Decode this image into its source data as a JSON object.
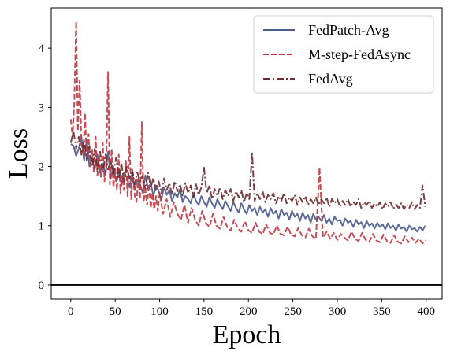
{
  "chart_data": {
    "type": "line",
    "title": "",
    "xlabel": "Epoch",
    "ylabel": "Loss",
    "xlim": [
      -22,
      418
    ],
    "ylim": [
      -0.24,
      4.68
    ],
    "xticks": [
      0,
      50,
      100,
      150,
      200,
      250,
      300,
      350,
      400
    ],
    "yticks": [
      0,
      1,
      2,
      3,
      4
    ],
    "grid": false,
    "legend_position": "top-right",
    "hline": 0,
    "series": [
      {
        "name": "FedPatch-Avg",
        "color": "#4a5a8a",
        "dash": "solid",
        "x": [
          0,
          3,
          6,
          9,
          12,
          15,
          18,
          21,
          24,
          27,
          30,
          33,
          36,
          39,
          42,
          45,
          48,
          51,
          54,
          57,
          60,
          63,
          66,
          69,
          72,
          75,
          78,
          81,
          84,
          87,
          90,
          93,
          96,
          99,
          102,
          105,
          108,
          111,
          114,
          117,
          120,
          123,
          126,
          129,
          132,
          135,
          138,
          141,
          144,
          147,
          150,
          153,
          156,
          159,
          162,
          165,
          168,
          171,
          174,
          177,
          180,
          183,
          186,
          189,
          192,
          195,
          198,
          201,
          204,
          207,
          210,
          213,
          216,
          219,
          222,
          225,
          228,
          231,
          234,
          237,
          240,
          243,
          246,
          249,
          252,
          255,
          258,
          261,
          264,
          267,
          270,
          273,
          276,
          279,
          282,
          285,
          288,
          291,
          294,
          297,
          300,
          303,
          306,
          309,
          312,
          315,
          318,
          321,
          324,
          327,
          330,
          333,
          336,
          339,
          342,
          345,
          348,
          351,
          354,
          357,
          360,
          363,
          366,
          369,
          372,
          375,
          378,
          381,
          384,
          387,
          390,
          393,
          396,
          399
        ],
        "values": [
          2.38,
          2.35,
          2.18,
          2.3,
          2.5,
          2.1,
          2.45,
          2.0,
          2.15,
          1.95,
          2.2,
          1.9,
          2.05,
          1.85,
          2.25,
          1.8,
          2.0,
          1.75,
          1.95,
          1.7,
          1.9,
          1.82,
          1.65,
          1.88,
          1.6,
          1.78,
          1.7,
          1.55,
          1.85,
          1.62,
          1.72,
          1.5,
          1.68,
          1.58,
          1.45,
          1.65,
          1.52,
          1.6,
          1.42,
          1.55,
          1.48,
          1.62,
          1.4,
          1.5,
          1.45,
          1.38,
          1.55,
          1.42,
          1.35,
          1.5,
          1.4,
          1.32,
          1.48,
          1.38,
          1.3,
          1.45,
          1.35,
          1.28,
          1.42,
          1.33,
          1.25,
          1.4,
          1.3,
          1.22,
          1.38,
          1.28,
          1.2,
          1.35,
          1.25,
          1.3,
          1.18,
          1.32,
          1.22,
          1.28,
          1.15,
          1.3,
          1.2,
          1.25,
          1.12,
          1.28,
          1.18,
          1.22,
          1.1,
          1.25,
          1.15,
          1.2,
          1.08,
          1.22,
          1.12,
          1.18,
          1.05,
          1.2,
          1.1,
          1.15,
          1.08,
          1.18,
          1.05,
          1.12,
          1.02,
          1.15,
          1.08,
          1.1,
          1.0,
          1.12,
          1.05,
          1.08,
          0.98,
          1.1,
          1.02,
          1.06,
          0.96,
          1.08,
          1.0,
          1.04,
          0.95,
          1.05,
          0.98,
          1.02,
          0.94,
          1.04,
          0.96,
          1.0,
          0.92,
          1.02,
          0.95,
          0.98,
          0.9,
          1.0,
          0.94,
          0.96,
          0.9,
          0.98,
          0.92,
          1.0
        ]
      },
      {
        "name": "M-step-FedAsync",
        "color": "#c0393f",
        "dash": "dashed",
        "x": [
          0,
          2,
          4,
          6,
          8,
          10,
          12,
          14,
          16,
          18,
          20,
          22,
          24,
          26,
          28,
          30,
          32,
          34,
          36,
          38,
          40,
          42,
          44,
          46,
          48,
          50,
          52,
          54,
          56,
          58,
          60,
          62,
          64,
          66,
          68,
          70,
          72,
          74,
          76,
          78,
          80,
          82,
          84,
          86,
          88,
          90,
          92,
          94,
          96,
          98,
          100,
          104,
          108,
          112,
          116,
          120,
          124,
          128,
          132,
          136,
          140,
          144,
          148,
          152,
          156,
          160,
          164,
          168,
          172,
          176,
          180,
          184,
          188,
          192,
          196,
          200,
          204,
          208,
          212,
          216,
          220,
          224,
          228,
          232,
          236,
          240,
          244,
          248,
          252,
          256,
          260,
          264,
          268,
          272,
          276,
          280,
          284,
          288,
          292,
          296,
          300,
          304,
          308,
          312,
          316,
          320,
          324,
          328,
          332,
          336,
          340,
          344,
          348,
          352,
          356,
          360,
          364,
          368,
          372,
          376,
          380,
          384,
          388,
          392,
          396,
          399
        ],
        "values": [
          2.8,
          2.5,
          3.1,
          4.45,
          2.6,
          3.45,
          2.4,
          2.2,
          2.9,
          2.1,
          2.55,
          2.0,
          2.3,
          1.9,
          2.5,
          1.85,
          2.2,
          1.8,
          2.4,
          1.75,
          2.1,
          3.6,
          1.7,
          2.3,
          1.65,
          1.95,
          1.6,
          2.2,
          1.55,
          1.85,
          1.6,
          2.1,
          1.5,
          2.5,
          1.45,
          1.9,
          1.5,
          1.4,
          1.8,
          1.45,
          2.75,
          1.4,
          1.6,
          1.35,
          1.7,
          1.3,
          1.55,
          1.28,
          1.5,
          1.25,
          1.55,
          1.2,
          1.45,
          1.15,
          1.4,
          1.2,
          1.1,
          1.35,
          1.05,
          1.3,
          1.1,
          1.0,
          1.25,
          1.05,
          0.98,
          1.2,
          1.0,
          0.95,
          1.15,
          0.98,
          0.92,
          1.1,
          0.95,
          0.9,
          1.08,
          0.92,
          0.88,
          1.05,
          0.9,
          0.86,
          1.02,
          0.88,
          0.85,
          1.0,
          0.86,
          0.84,
          0.98,
          0.85,
          0.82,
          0.96,
          0.84,
          0.8,
          0.95,
          0.82,
          0.78,
          1.98,
          0.8,
          0.9,
          0.78,
          0.88,
          0.76,
          0.86,
          0.8,
          0.75,
          0.9,
          0.78,
          0.74,
          0.88,
          0.76,
          0.73,
          0.86,
          0.75,
          0.72,
          0.85,
          0.74,
          0.71,
          0.84,
          0.73,
          0.7,
          0.82,
          0.72,
          0.8,
          0.71,
          0.78,
          0.7,
          0.75
        ]
      },
      {
        "name": "FedAvg",
        "color": "#6b2b30",
        "dash": "dashdot",
        "x": [
          0,
          3,
          6,
          9,
          12,
          15,
          18,
          21,
          24,
          27,
          30,
          33,
          36,
          39,
          42,
          45,
          48,
          51,
          54,
          57,
          60,
          63,
          66,
          69,
          72,
          75,
          78,
          81,
          84,
          87,
          90,
          93,
          96,
          99,
          102,
          105,
          108,
          111,
          114,
          117,
          120,
          123,
          126,
          129,
          132,
          135,
          138,
          141,
          144,
          147,
          150,
          153,
          156,
          159,
          162,
          165,
          168,
          171,
          174,
          177,
          180,
          183,
          186,
          189,
          192,
          195,
          198,
          201,
          204,
          207,
          210,
          213,
          216,
          219,
          222,
          225,
          228,
          231,
          234,
          237,
          240,
          243,
          246,
          249,
          252,
          255,
          258,
          261,
          264,
          267,
          270,
          273,
          276,
          279,
          282,
          285,
          288,
          291,
          294,
          297,
          300,
          303,
          306,
          309,
          312,
          315,
          318,
          321,
          324,
          327,
          330,
          333,
          336,
          339,
          342,
          345,
          348,
          351,
          354,
          357,
          360,
          363,
          366,
          369,
          372,
          375,
          378,
          381,
          384,
          387,
          390,
          393,
          396,
          399
        ],
        "values": [
          2.4,
          2.6,
          2.3,
          2.5,
          2.2,
          2.45,
          2.1,
          2.35,
          2.0,
          2.3,
          1.95,
          2.25,
          1.9,
          2.2,
          1.95,
          2.1,
          1.85,
          2.15,
          1.8,
          2.05,
          1.75,
          2.0,
          1.8,
          1.95,
          1.7,
          1.9,
          1.75,
          1.85,
          1.6,
          1.9,
          1.65,
          1.8,
          1.6,
          1.75,
          1.55,
          1.8,
          1.6,
          1.72,
          1.52,
          1.75,
          1.58,
          1.7,
          1.5,
          1.72,
          1.55,
          1.68,
          1.48,
          1.7,
          1.52,
          1.65,
          1.98,
          1.55,
          1.68,
          1.45,
          1.62,
          1.5,
          1.65,
          1.45,
          1.6,
          1.5,
          1.62,
          1.42,
          1.58,
          1.48,
          1.6,
          1.4,
          1.55,
          1.45,
          2.25,
          1.42,
          1.55,
          1.45,
          1.58,
          1.4,
          1.52,
          1.45,
          1.55,
          1.38,
          1.5,
          1.42,
          1.55,
          1.38,
          1.48,
          1.42,
          1.52,
          1.35,
          1.48,
          1.4,
          1.5,
          1.35,
          1.45,
          1.38,
          1.48,
          1.35,
          1.45,
          1.38,
          1.48,
          1.32,
          1.45,
          1.38,
          1.45,
          1.32,
          1.42,
          1.35,
          1.45,
          1.32,
          1.4,
          1.35,
          1.45,
          1.3,
          1.4,
          1.35,
          1.42,
          1.3,
          1.38,
          1.32,
          1.4,
          1.28,
          1.38,
          1.32,
          1.4,
          1.28,
          1.36,
          1.3,
          1.38,
          1.28,
          1.36,
          1.3,
          1.4,
          1.28,
          1.35,
          1.3,
          1.68,
          1.32
        ]
      }
    ]
  }
}
